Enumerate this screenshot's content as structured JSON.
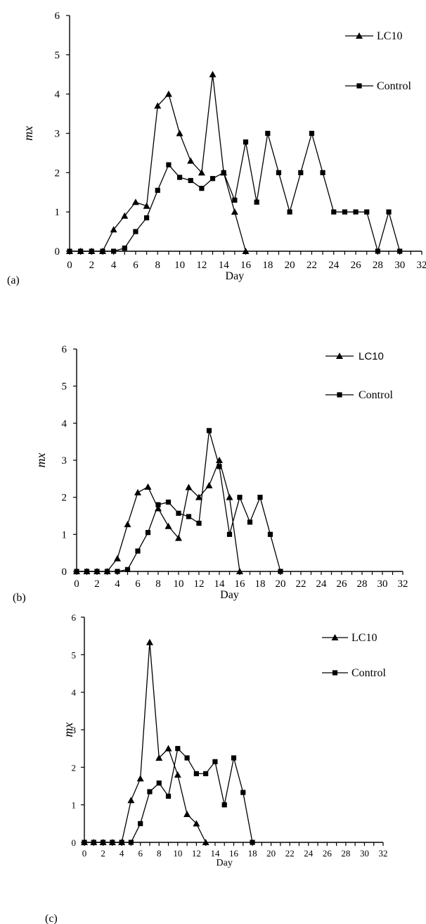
{
  "chart_data": [
    {
      "panel_label": "(a)",
      "type": "line",
      "xlabel": "Day",
      "ylabel": "mx",
      "xlim": [
        0,
        32
      ],
      "ylim": [
        0,
        6
      ],
      "x_ticks": [
        "0",
        "2",
        "4",
        "6",
        "8",
        "10",
        "12",
        "14",
        "16",
        "18",
        "20",
        "22",
        "24",
        "26",
        "28",
        "30",
        "32"
      ],
      "y_ticks": [
        "0",
        "1",
        "2",
        "3",
        "4",
        "5",
        "6"
      ],
      "legend_position": "top-right",
      "series": [
        {
          "name": "LC10",
          "marker": "triangle",
          "x": [
            0,
            1,
            2,
            3,
            4,
            5,
            6,
            7,
            8,
            9,
            10,
            11,
            12,
            13,
            14,
            15,
            16
          ],
          "y": [
            0,
            0,
            0,
            0,
            0.55,
            0.9,
            1.25,
            1.15,
            3.7,
            4.0,
            3.0,
            2.3,
            2.0,
            4.5,
            2.0,
            1.0,
            0
          ]
        },
        {
          "name": "Control",
          "marker": "square",
          "x": [
            0,
            1,
            2,
            3,
            4,
            5,
            6,
            7,
            8,
            9,
            10,
            11,
            12,
            13,
            14,
            15,
            16,
            17,
            18,
            19,
            20,
            21,
            22,
            23,
            24,
            25,
            26,
            27,
            28,
            29,
            30
          ],
          "y": [
            0,
            0,
            0,
            0,
            0,
            0.08,
            0.5,
            0.85,
            1.55,
            2.2,
            1.88,
            1.8,
            1.6,
            1.85,
            2.0,
            1.3,
            2.78,
            1.25,
            3.0,
            2.0,
            1.0,
            2.0,
            3.0,
            2.0,
            1.0,
            1.0,
            1.0,
            1.0,
            0,
            1.0,
            0
          ]
        }
      ]
    },
    {
      "panel_label": "(b)",
      "type": "line",
      "xlabel": "Day",
      "ylabel": "mx",
      "xlim": [
        0,
        32
      ],
      "ylim": [
        0,
        6
      ],
      "x_ticks": [
        "0",
        "2",
        "4",
        "6",
        "8",
        "10",
        "12",
        "14",
        "16",
        "18",
        "20",
        "22",
        "24",
        "26",
        "28",
        "30",
        "32"
      ],
      "y_ticks": [
        "0",
        "1",
        "2",
        "3",
        "4",
        "5",
        "6"
      ],
      "legend_position": "top-right",
      "series": [
        {
          "name": "LC10",
          "marker": "triangle",
          "x": [
            0,
            1,
            2,
            3,
            4,
            5,
            6,
            7,
            8,
            9,
            10,
            11,
            12,
            13,
            14,
            15,
            16
          ],
          "y": [
            0,
            0,
            0,
            0,
            0.35,
            1.27,
            2.13,
            2.28,
            1.7,
            1.22,
            0.9,
            2.27,
            2.0,
            2.32,
            3.0,
            2.0,
            0
          ]
        },
        {
          "name": "Control",
          "marker": "square",
          "x": [
            0,
            1,
            2,
            3,
            4,
            5,
            6,
            7,
            8,
            9,
            10,
            11,
            12,
            13,
            14,
            15,
            16,
            17,
            18,
            19,
            20
          ],
          "y": [
            0,
            0,
            0,
            0,
            0,
            0.05,
            0.55,
            1.05,
            1.8,
            1.87,
            1.57,
            1.48,
            1.3,
            3.8,
            2.83,
            1.0,
            2.0,
            1.33,
            2.0,
            1.0,
            0
          ]
        }
      ]
    },
    {
      "panel_label": "(c)",
      "type": "line",
      "xlabel": "Day",
      "ylabel": "mx",
      "xlim": [
        0,
        32
      ],
      "ylim": [
        0,
        6
      ],
      "x_ticks": [
        "0",
        "2",
        "4",
        "6",
        "8",
        "10",
        "12",
        "14",
        "16",
        "18",
        "20",
        "22",
        "24",
        "26",
        "28",
        "30",
        "32"
      ],
      "y_ticks": [
        "0",
        "1",
        "2",
        "3",
        "4",
        "5",
        "6"
      ],
      "legend_position": "top-right",
      "series": [
        {
          "name": "LC10",
          "marker": "triangle",
          "x": [
            0,
            1,
            2,
            3,
            4,
            5,
            6,
            7,
            8,
            9,
            10,
            11,
            12,
            13
          ],
          "y": [
            0,
            0,
            0,
            0,
            0,
            1.12,
            1.7,
            5.33,
            2.25,
            2.5,
            1.8,
            0.75,
            0.5,
            0
          ]
        },
        {
          "name": "Control",
          "marker": "square",
          "x": [
            0,
            1,
            2,
            3,
            4,
            5,
            6,
            7,
            8,
            9,
            10,
            11,
            12,
            13,
            14,
            15,
            16,
            17,
            18
          ],
          "y": [
            0,
            0,
            0,
            0,
            0,
            0,
            0.5,
            1.35,
            1.58,
            1.23,
            2.5,
            2.25,
            1.83,
            1.83,
            2.15,
            1.0,
            2.25,
            1.33,
            0
          ]
        }
      ]
    }
  ]
}
